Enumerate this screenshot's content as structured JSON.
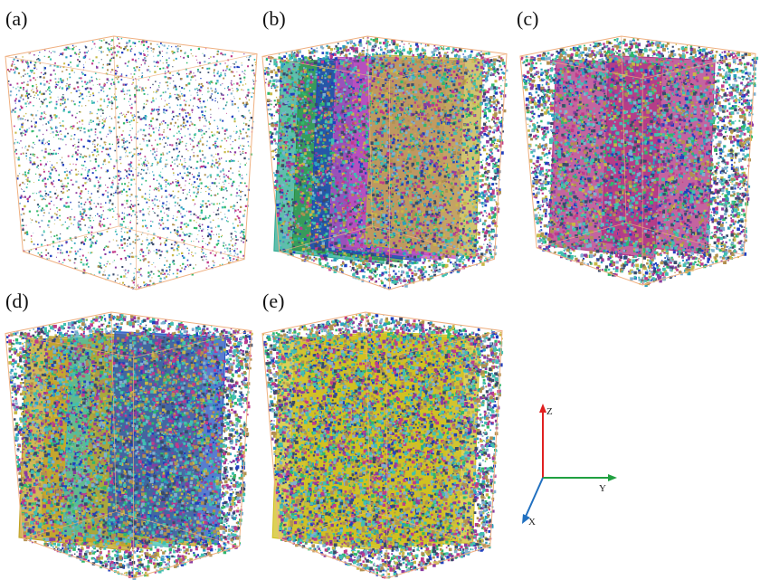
{
  "panels": [
    {
      "label": "(a)"
    },
    {
      "label": "(b)"
    },
    {
      "label": "(c)"
    },
    {
      "label": "(d)"
    },
    {
      "label": "(e)"
    }
  ],
  "axes": {
    "z": "Z",
    "y": "Y",
    "x": "X"
  }
}
